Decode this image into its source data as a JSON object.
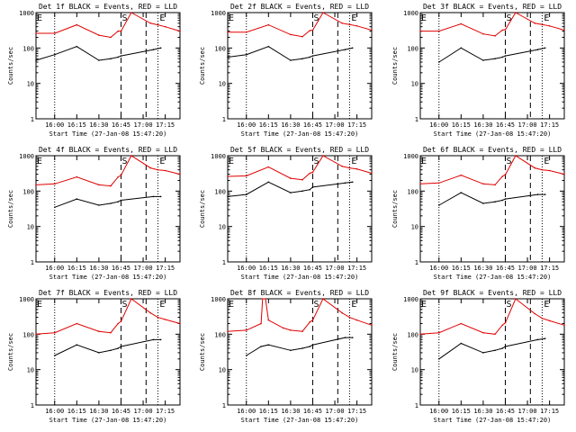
{
  "figure": {
    "xtick_labels": [
      "16:00",
      "16:15",
      "16:30",
      "16:45",
      "17:00",
      "17:15"
    ],
    "ytick_labels": [
      "1",
      "10",
      "100",
      "1000"
    ],
    "ylabel": "Counts/sec",
    "xlabel": "Start Time (27-Jan-08 15:47:20)",
    "markers": {
      "left_label": "E",
      "mid_label": "S",
      "right_label": "E"
    }
  },
  "colors": {
    "events": "#000000",
    "lld": "#e00000"
  },
  "chart_data": [
    {
      "type": "line",
      "title": "Det 1f BLACK = Events, RED = LLD",
      "ylabel": "Counts/sec",
      "xlabel": "Start Time (27-Jan-08 15:47:20)",
      "yscale": "log",
      "xlim": [
        "15:47:20",
        "17:25"
      ],
      "ylim": [
        1,
        1000
      ],
      "series": [
        {
          "x": [
            "15:47:20",
            "16:00",
            "16:15",
            "16:30",
            "16:38",
            "16:43",
            "16:45",
            "16:52",
            "17:05",
            "17:10",
            "17:15",
            "17:25"
          ],
          "y": [
            260,
            260,
            450,
            230,
            200,
            300,
            300,
            1000,
            500,
            450,
            400,
            300
          ]
        },
        {
          "x": [
            "15:47:20",
            "16:00",
            "16:15",
            "16:30",
            "16:38",
            "16:43",
            "16:45",
            "17:07",
            "17:12"
          ],
          "y": [
            45,
            65,
            110,
            45,
            50,
            55,
            60,
            90,
            100
          ]
        }
      ],
      "markers": {
        "dotted": [
          "16:00",
          "17:10"
        ],
        "dashed": [
          "16:45",
          "17:02"
        ]
      }
    },
    {
      "type": "line",
      "title": "Det 2f BLACK = Events, RED = LLD",
      "ylabel": "Counts/sec",
      "xlabel": "Start Time (27-Jan-08 15:47:20)",
      "yscale": "log",
      "xlim": [
        "15:47:20",
        "17:25"
      ],
      "ylim": [
        1,
        1000
      ],
      "series": [
        {
          "x": [
            "15:47:20",
            "16:00",
            "16:15",
            "16:30",
            "16:38",
            "16:43",
            "16:45",
            "16:52",
            "17:05",
            "17:10",
            "17:15",
            "17:25"
          ],
          "y": [
            280,
            280,
            450,
            240,
            210,
            310,
            320,
            1000,
            500,
            460,
            420,
            320
          ]
        },
        {
          "x": [
            "15:47:20",
            "16:00",
            "16:15",
            "16:30",
            "16:38",
            "16:43",
            "16:45",
            "17:07",
            "17:12"
          ],
          "y": [
            55,
            65,
            110,
            45,
            50,
            55,
            60,
            90,
            100
          ]
        }
      ],
      "markers": {
        "dotted": [
          "16:00",
          "17:10"
        ],
        "dashed": [
          "16:45",
          "17:02"
        ]
      }
    },
    {
      "type": "line",
      "title": "Det 3f BLACK = Events, RED = LLD",
      "ylabel": "Counts/sec",
      "xlabel": "Start Time (27-Jan-08 15:47:20)",
      "yscale": "log",
      "xlim": [
        "15:47:20",
        "17:25"
      ],
      "ylim": [
        1,
        1000
      ],
      "series": [
        {
          "x": [
            "15:47:20",
            "16:00",
            "16:15",
            "16:30",
            "16:38",
            "16:43",
            "16:45",
            "16:52",
            "17:05",
            "17:10",
            "17:15",
            "17:25"
          ],
          "y": [
            300,
            300,
            480,
            250,
            220,
            320,
            330,
            1000,
            500,
            460,
            420,
            320
          ]
        },
        {
          "x": [
            "16:00",
            "16:15",
            "16:30",
            "16:38",
            "16:43",
            "16:45",
            "17:07",
            "17:12"
          ],
          "y": [
            40,
            100,
            45,
            50,
            55,
            60,
            90,
            100
          ]
        }
      ],
      "markers": {
        "dotted": [
          "16:00",
          "17:10"
        ],
        "dashed": [
          "16:45",
          "17:02"
        ]
      }
    },
    {
      "type": "line",
      "title": "Det 4f BLACK = Events, RED = LLD",
      "ylabel": "Counts/sec",
      "xlabel": "Start Time (27-Jan-08 15:47:20)",
      "yscale": "log",
      "xlim": [
        "15:47:20",
        "17:25"
      ],
      "ylim": [
        1,
        1000
      ],
      "series": [
        {
          "x": [
            "15:47:20",
            "16:00",
            "16:15",
            "16:30",
            "16:38",
            "16:43",
            "16:45",
            "16:52",
            "17:05",
            "17:10",
            "17:15",
            "17:25"
          ],
          "y": [
            150,
            160,
            250,
            150,
            140,
            250,
            280,
            1000,
            450,
            400,
            380,
            300
          ]
        },
        {
          "x": [
            "16:00",
            "16:15",
            "16:30",
            "16:38",
            "16:43",
            "16:45",
            "17:07",
            "17:12"
          ],
          "y": [
            35,
            60,
            40,
            45,
            50,
            55,
            70,
            70
          ]
        }
      ],
      "markers": {
        "dotted": [
          "16:00",
          "17:10"
        ],
        "dashed": [
          "16:45",
          "17:02"
        ]
      }
    },
    {
      "type": "line",
      "title": "Det 5f BLACK = Events, RED = LLD",
      "ylabel": "Counts/sec",
      "xlabel": "Start Time (27-Jan-08 15:47:20)",
      "yscale": "log",
      "xlim": [
        "15:47:20",
        "17:25"
      ],
      "ylim": [
        1,
        1000
      ],
      "series": [
        {
          "x": [
            "15:47:20",
            "16:00",
            "16:15",
            "16:30",
            "16:38",
            "16:43",
            "16:45",
            "16:52",
            "17:05",
            "17:10",
            "17:15",
            "17:25"
          ],
          "y": [
            260,
            270,
            480,
            230,
            210,
            320,
            340,
            1000,
            500,
            450,
            420,
            320
          ]
        },
        {
          "x": [
            "15:47:20",
            "16:00",
            "16:15",
            "16:30",
            "16:38",
            "16:43",
            "16:45",
            "17:07",
            "17:12"
          ],
          "y": [
            70,
            80,
            180,
            90,
            100,
            110,
            130,
            170,
            180
          ]
        }
      ],
      "markers": {
        "dotted": [
          "16:00",
          "17:10"
        ],
        "dashed": [
          "16:45",
          "17:02"
        ]
      }
    },
    {
      "type": "line",
      "title": "Det 6f BLACK = Events, RED = LLD",
      "ylabel": "Counts/sec",
      "xlabel": "Start Time (27-Jan-08 15:47:20)",
      "yscale": "log",
      "xlim": [
        "15:47:20",
        "17:25"
      ],
      "ylim": [
        1,
        1000
      ],
      "series": [
        {
          "x": [
            "15:47:20",
            "16:00",
            "16:15",
            "16:30",
            "16:38",
            "16:43",
            "16:45",
            "16:52",
            "17:05",
            "17:10",
            "17:15",
            "17:25"
          ],
          "y": [
            160,
            170,
            280,
            160,
            150,
            260,
            290,
            1000,
            450,
            400,
            380,
            300
          ]
        },
        {
          "x": [
            "16:00",
            "16:15",
            "16:30",
            "16:38",
            "16:43",
            "16:45",
            "17:07",
            "17:12"
          ],
          "y": [
            40,
            90,
            45,
            50,
            55,
            60,
            80,
            80
          ]
        }
      ],
      "markers": {
        "dotted": [
          "16:00",
          "17:10"
        ],
        "dashed": [
          "16:45",
          "17:02"
        ]
      }
    },
    {
      "type": "line",
      "title": "Det 7f BLACK = Events, RED = LLD",
      "ylabel": "Counts/sec",
      "xlabel": "Start Time (27-Jan-08 15:47:20)",
      "yscale": "log",
      "xlim": [
        "15:47:20",
        "17:25"
      ],
      "ylim": [
        1,
        1000
      ],
      "series": [
        {
          "x": [
            "15:47:20",
            "16:00",
            "16:15",
            "16:30",
            "16:38",
            "16:43",
            "16:45",
            "16:52",
            "17:05",
            "17:10",
            "17:15",
            "17:25"
          ],
          "y": [
            100,
            110,
            200,
            120,
            110,
            200,
            230,
            1000,
            400,
            300,
            260,
            200
          ]
        },
        {
          "x": [
            "16:00",
            "16:15",
            "16:30",
            "16:38",
            "16:43",
            "16:45",
            "17:07",
            "17:12"
          ],
          "y": [
            25,
            50,
            30,
            35,
            40,
            45,
            70,
            70
          ]
        }
      ],
      "markers": {
        "dotted": [
          "16:00",
          "17:10"
        ],
        "dashed": [
          "16:45",
          "17:02"
        ]
      }
    },
    {
      "type": "line",
      "title": "Det 8f BLACK = Events, RED = LLD",
      "ylabel": "Counts/sec",
      "xlabel": "Start Time (27-Jan-08 15:47:20)",
      "yscale": "log",
      "xlim": [
        "15:47:20",
        "17:25"
      ],
      "ylim": [
        1,
        1000
      ],
      "series": [
        {
          "x": [
            "15:47:20",
            "16:00",
            "16:10",
            "16:11",
            "16:13",
            "16:15",
            "16:25",
            "16:30",
            "16:38",
            "16:43",
            "16:45",
            "16:52",
            "17:05",
            "17:10",
            "17:15",
            "17:25"
          ],
          "y": [
            120,
            130,
            200,
            1000,
            1000,
            250,
            150,
            130,
            120,
            220,
            250,
            1000,
            400,
            300,
            250,
            180
          ]
        },
        {
          "x": [
            "16:00",
            "16:10",
            "16:15",
            "16:30",
            "16:38",
            "16:43",
            "16:45",
            "17:07",
            "17:12"
          ],
          "y": [
            25,
            45,
            50,
            35,
            40,
            45,
            50,
            80,
            80
          ]
        }
      ],
      "markers": {
        "dotted": [
          "16:00",
          "17:10"
        ],
        "dashed": [
          "16:45",
          "17:02"
        ]
      }
    },
    {
      "type": "line",
      "title": "Det 9f BLACK = Events, RED = LLD",
      "ylabel": "Counts/sec",
      "xlabel": "Start Time (27-Jan-08 15:47:20)",
      "yscale": "log",
      "xlim": [
        "15:47:20",
        "17:25"
      ],
      "ylim": [
        1,
        1000
      ],
      "series": [
        {
          "x": [
            "15:47:20",
            "16:00",
            "16:15",
            "16:30",
            "16:38",
            "16:43",
            "16:45",
            "16:52",
            "17:05",
            "17:10",
            "17:15",
            "17:25"
          ],
          "y": [
            100,
            110,
            200,
            110,
            100,
            180,
            210,
            1000,
            380,
            280,
            240,
            180
          ]
        },
        {
          "x": [
            "16:00",
            "16:15",
            "16:30",
            "16:38",
            "16:43",
            "16:45",
            "17:07",
            "17:12"
          ],
          "y": [
            20,
            55,
            30,
            35,
            40,
            45,
            70,
            75
          ]
        }
      ],
      "markers": {
        "dotted": [
          "16:00",
          "17:10"
        ],
        "dashed": [
          "16:45",
          "17:02"
        ]
      }
    }
  ]
}
